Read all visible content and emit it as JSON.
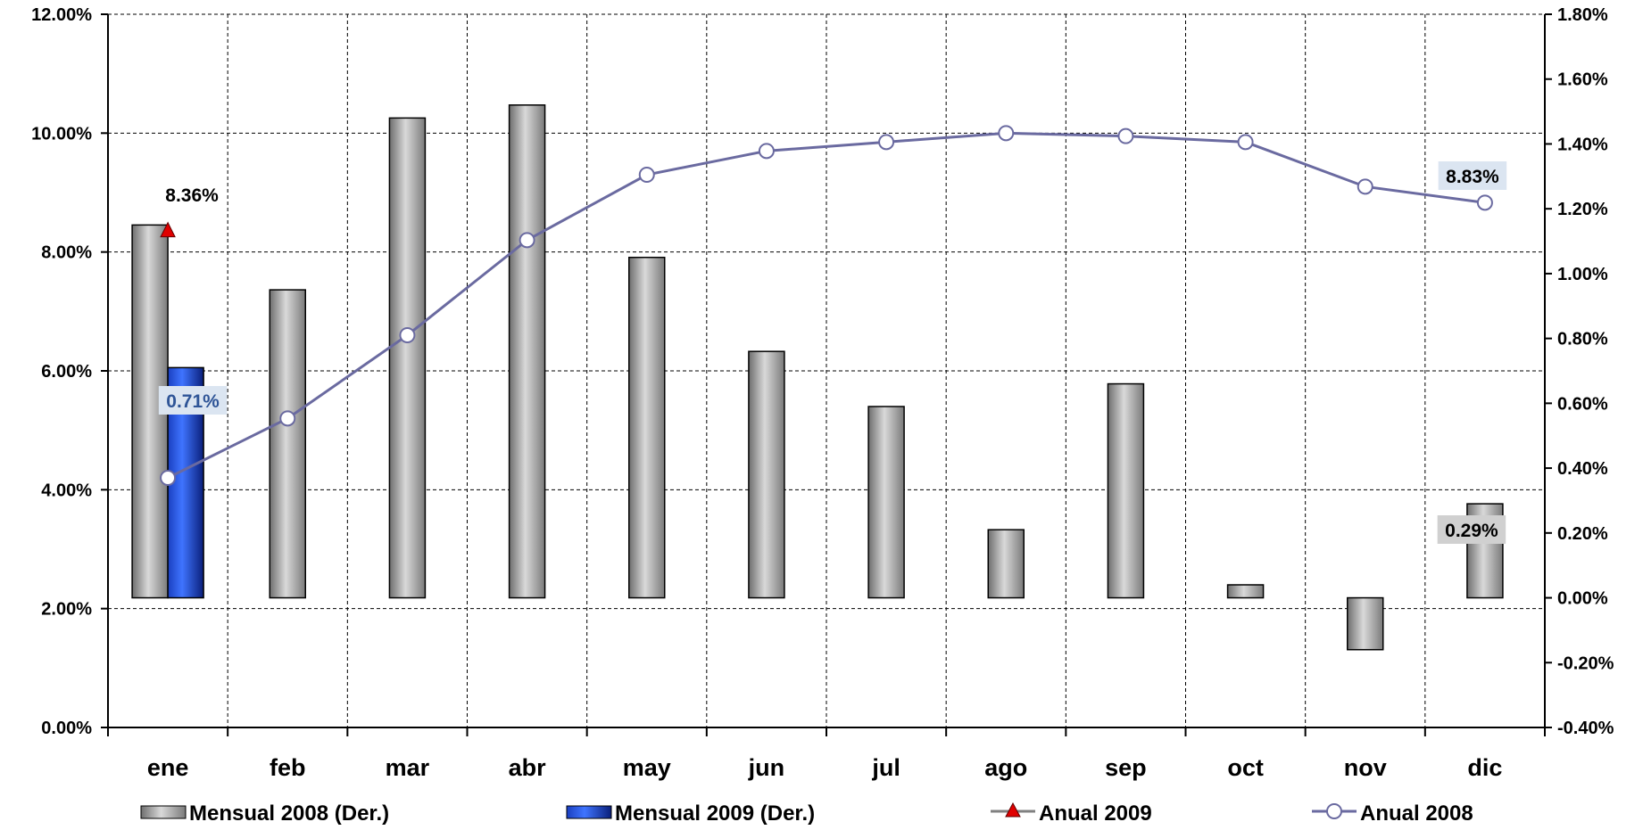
{
  "chart_data": {
    "type": "bar",
    "categories": [
      "ene",
      "feb",
      "mar",
      "abr",
      "may",
      "jun",
      "jul",
      "ago",
      "sep",
      "oct",
      "nov",
      "dic"
    ],
    "left_axis": {
      "ylim": [
        0,
        12
      ],
      "ticks": [
        "0.00%",
        "2.00%",
        "4.00%",
        "6.00%",
        "8.00%",
        "10.00%",
        "12.00%"
      ]
    },
    "right_axis": {
      "ylim": [
        -0.4,
        1.8
      ],
      "ticks": [
        "-0.40%",
        "-0.20%",
        "0.00%",
        "0.20%",
        "0.40%",
        "0.60%",
        "0.80%",
        "1.00%",
        "1.20%",
        "1.40%",
        "1.60%",
        "1.80%"
      ]
    },
    "grid": true,
    "legend_position": "bottom",
    "series": [
      {
        "name": "Mensual 2008 (Der.)",
        "type": "bar",
        "axis": "right",
        "color": "#a6a6a6",
        "values": [
          1.15,
          0.95,
          1.48,
          1.52,
          1.05,
          0.76,
          0.59,
          0.21,
          0.66,
          0.04,
          -0.16,
          0.29
        ]
      },
      {
        "name": "Mensual 2009 (Der.)",
        "type": "bar",
        "axis": "right",
        "color": "#2f5fe0",
        "values": [
          0.71,
          null,
          null,
          null,
          null,
          null,
          null,
          null,
          null,
          null,
          null,
          null
        ]
      },
      {
        "name": "Anual 2009",
        "type": "line",
        "axis": "left",
        "color": "#e00000",
        "values": [
          8.36,
          null,
          null,
          null,
          null,
          null,
          null,
          null,
          null,
          null,
          null,
          null
        ]
      },
      {
        "name": "Anual 2008",
        "type": "line",
        "axis": "left",
        "color": "#6a6aa0",
        "values": [
          4.2,
          5.2,
          6.6,
          8.2,
          9.3,
          9.7,
          9.85,
          10.0,
          9.95,
          9.85,
          9.1,
          8.83
        ]
      }
    ],
    "data_labels": [
      {
        "text": "8.36%",
        "series": "Anual 2009",
        "index": 0
      },
      {
        "text": "0.71%",
        "series": "Mensual 2009 (Der.)",
        "index": 0
      },
      {
        "text": "8.83%",
        "series": "Anual 2008",
        "index": 11
      },
      {
        "text": "0.29%",
        "series": "Mensual 2008 (Der.)",
        "index": 11
      }
    ]
  }
}
